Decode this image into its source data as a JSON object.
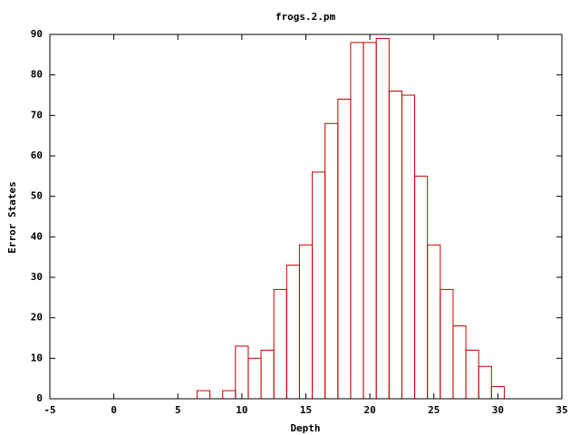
{
  "chart_data": {
    "type": "histogram",
    "title": "frogs.2.pm",
    "x_label": "Depth",
    "y_label": "Error States",
    "bins": [
      6.5,
      7.5,
      8.5,
      9.5,
      10.5,
      11.5,
      12.5,
      13.5,
      14.5,
      15.5,
      16.5,
      17.5,
      18.5,
      19.5,
      20.5,
      21.5,
      22.5,
      23.5,
      24.5,
      25.5,
      26.5,
      27.5,
      28.5,
      29.5,
      30.5
    ],
    "values": [
      2,
      0,
      2,
      13,
      10,
      12,
      27,
      33,
      38,
      56,
      68,
      74,
      88,
      88,
      89,
      76,
      75,
      55,
      38,
      27,
      18,
      12,
      8,
      3
    ],
    "color": "#c00000",
    "xlim": [
      -5,
      35
    ],
    "xticks": [
      -5,
      0,
      5,
      10,
      15,
      20,
      25,
      30,
      35
    ],
    "ylim": [
      0,
      90
    ],
    "yticks": [
      0,
      10,
      20,
      30,
      40,
      50,
      60,
      70,
      80,
      90
    ]
  }
}
